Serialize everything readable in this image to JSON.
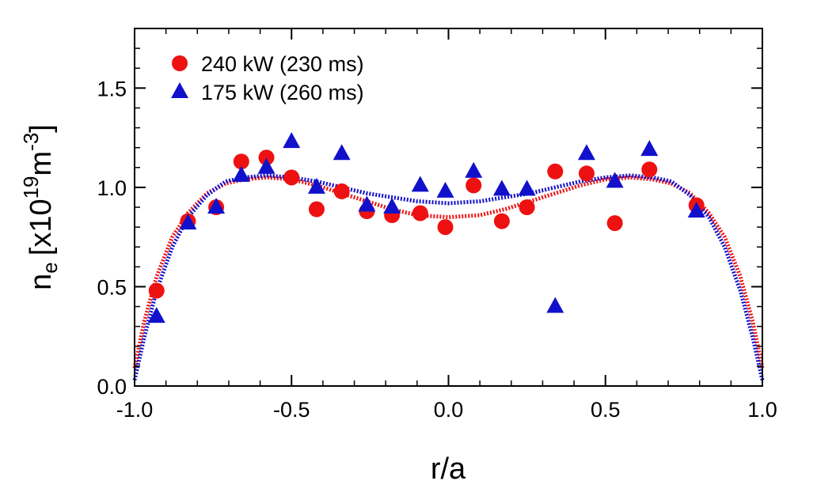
{
  "chart_data": {
    "type": "scatter",
    "xlabel": "r/a",
    "ylabel_parts": {
      "base": "n",
      "subscript": "e",
      "bracket_open": "[x10",
      "exp1": "19",
      "unit": "m",
      "exp2": "-3",
      "bracket_close": "]"
    },
    "xlim": [
      -1.0,
      1.0
    ],
    "ylim": [
      0.0,
      1.8
    ],
    "xticks": [
      {
        "value": -1.0,
        "label": "-1.0"
      },
      {
        "value": -0.5,
        "label": "-0.5"
      },
      {
        "value": 0.0,
        "label": "0.0"
      },
      {
        "value": 0.5,
        "label": "0.5"
      },
      {
        "value": 1.0,
        "label": "1.0"
      }
    ],
    "yticks": [
      {
        "value": 0.0,
        "label": "0.0"
      },
      {
        "value": 0.5,
        "label": "0.5"
      },
      {
        "value": 1.0,
        "label": "1.0"
      },
      {
        "value": 1.5,
        "label": "1.5"
      }
    ],
    "x_minor_step": 0.1,
    "y_minor_step": 0.1,
    "grid": false,
    "legend_position": "top-left",
    "series": [
      {
        "name": "240 kW (230 ms)",
        "marker": "circle",
        "color": "#ee1111",
        "points": [
          {
            "x": -0.93,
            "y": 0.48
          },
          {
            "x": -0.83,
            "y": 0.83
          },
          {
            "x": -0.74,
            "y": 0.9
          },
          {
            "x": -0.66,
            "y": 1.13
          },
          {
            "x": -0.58,
            "y": 1.15
          },
          {
            "x": -0.5,
            "y": 1.05
          },
          {
            "x": -0.42,
            "y": 0.89
          },
          {
            "x": -0.34,
            "y": 0.98
          },
          {
            "x": -0.26,
            "y": 0.88
          },
          {
            "x": -0.18,
            "y": 0.86
          },
          {
            "x": -0.09,
            "y": 0.87
          },
          {
            "x": -0.01,
            "y": 0.8
          },
          {
            "x": 0.08,
            "y": 1.01
          },
          {
            "x": 0.17,
            "y": 0.83
          },
          {
            "x": 0.25,
            "y": 0.9
          },
          {
            "x": 0.34,
            "y": 1.08
          },
          {
            "x": 0.44,
            "y": 1.07
          },
          {
            "x": 0.53,
            "y": 0.82
          },
          {
            "x": 0.64,
            "y": 1.09
          },
          {
            "x": 0.79,
            "y": 0.91
          }
        ],
        "fit": {
          "style": "dotted",
          "points": [
            [
              -1.0,
              0.09
            ],
            [
              -0.97,
              0.32
            ],
            [
              -0.93,
              0.55
            ],
            [
              -0.88,
              0.75
            ],
            [
              -0.83,
              0.87
            ],
            [
              -0.77,
              0.97
            ],
            [
              -0.71,
              1.02
            ],
            [
              -0.65,
              1.04
            ],
            [
              -0.58,
              1.05
            ],
            [
              -0.5,
              1.04
            ],
            [
              -0.42,
              1.01
            ],
            [
              -0.34,
              0.97
            ],
            [
              -0.26,
              0.93
            ],
            [
              -0.18,
              0.89
            ],
            [
              -0.1,
              0.86
            ],
            [
              0.0,
              0.85
            ],
            [
              0.1,
              0.86
            ],
            [
              0.18,
              0.89
            ],
            [
              0.26,
              0.93
            ],
            [
              0.34,
              0.97
            ],
            [
              0.42,
              1.01
            ],
            [
              0.5,
              1.04
            ],
            [
              0.58,
              1.05
            ],
            [
              0.65,
              1.04
            ],
            [
              0.71,
              1.02
            ],
            [
              0.77,
              0.97
            ],
            [
              0.83,
              0.87
            ],
            [
              0.88,
              0.75
            ],
            [
              0.93,
              0.55
            ],
            [
              0.97,
              0.32
            ],
            [
              1.0,
              0.09
            ]
          ]
        }
      },
      {
        "name": "175 kW (260 ms)",
        "marker": "triangle",
        "color": "#1111cc",
        "points": [
          {
            "x": -0.93,
            "y": 0.35
          },
          {
            "x": -0.83,
            "y": 0.82
          },
          {
            "x": -0.74,
            "y": 0.9
          },
          {
            "x": -0.66,
            "y": 1.06
          },
          {
            "x": -0.58,
            "y": 1.1
          },
          {
            "x": -0.5,
            "y": 1.23
          },
          {
            "x": -0.42,
            "y": 1.0
          },
          {
            "x": -0.34,
            "y": 1.17
          },
          {
            "x": -0.26,
            "y": 0.91
          },
          {
            "x": -0.18,
            "y": 0.9
          },
          {
            "x": -0.09,
            "y": 1.01
          },
          {
            "x": -0.01,
            "y": 0.98
          },
          {
            "x": 0.08,
            "y": 1.08
          },
          {
            "x": 0.17,
            "y": 0.99
          },
          {
            "x": 0.25,
            "y": 0.99
          },
          {
            "x": 0.34,
            "y": 0.4
          },
          {
            "x": 0.44,
            "y": 1.17
          },
          {
            "x": 0.53,
            "y": 1.03
          },
          {
            "x": 0.64,
            "y": 1.19
          },
          {
            "x": 0.79,
            "y": 0.88
          }
        ],
        "fit": {
          "style": "dotted",
          "points": [
            [
              -1.0,
              0.03
            ],
            [
              -0.97,
              0.24
            ],
            [
              -0.93,
              0.48
            ],
            [
              -0.88,
              0.7
            ],
            [
              -0.83,
              0.85
            ],
            [
              -0.77,
              0.96
            ],
            [
              -0.71,
              1.03
            ],
            [
              -0.65,
              1.05
            ],
            [
              -0.58,
              1.06
            ],
            [
              -0.5,
              1.05
            ],
            [
              -0.42,
              1.03
            ],
            [
              -0.34,
              1.0
            ],
            [
              -0.26,
              0.97
            ],
            [
              -0.18,
              0.95
            ],
            [
              -0.1,
              0.93
            ],
            [
              0.0,
              0.92
            ],
            [
              0.1,
              0.93
            ],
            [
              0.18,
              0.95
            ],
            [
              0.26,
              0.97
            ],
            [
              0.34,
              1.0
            ],
            [
              0.42,
              1.03
            ],
            [
              0.5,
              1.05
            ],
            [
              0.58,
              1.06
            ],
            [
              0.65,
              1.05
            ],
            [
              0.71,
              1.03
            ],
            [
              0.77,
              0.96
            ],
            [
              0.83,
              0.85
            ],
            [
              0.88,
              0.7
            ],
            [
              0.93,
              0.48
            ],
            [
              0.97,
              0.24
            ],
            [
              1.0,
              0.03
            ]
          ]
        }
      }
    ]
  }
}
